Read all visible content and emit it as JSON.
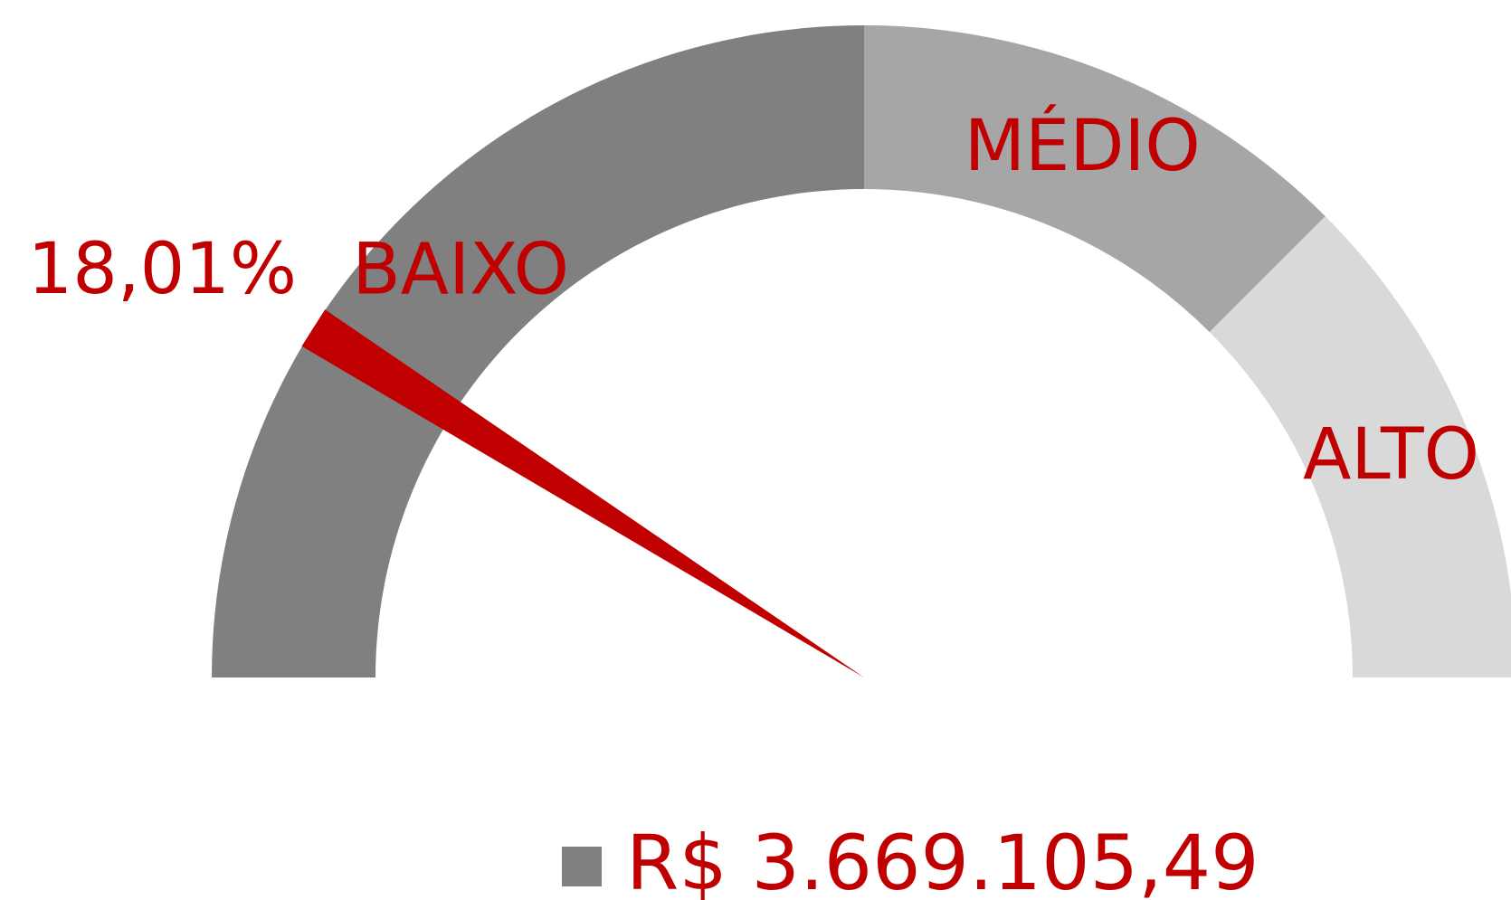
{
  "chart_data": {
    "type": "gauge",
    "segments": [
      {
        "name": "BAIXO",
        "value": 50,
        "color": "#808080"
      },
      {
        "name": "MÉDIO",
        "value": 25,
        "color": "#a6a6a6"
      },
      {
        "name": "ALTO",
        "value": 25,
        "color": "#d9d9d9"
      }
    ],
    "value": 18.01,
    "value_label": "18,01%",
    "needle_color": "#c00000",
    "range": [
      0,
      100
    ],
    "legend": {
      "label": "R$ 3.669.105,49",
      "color": "#808080"
    }
  }
}
